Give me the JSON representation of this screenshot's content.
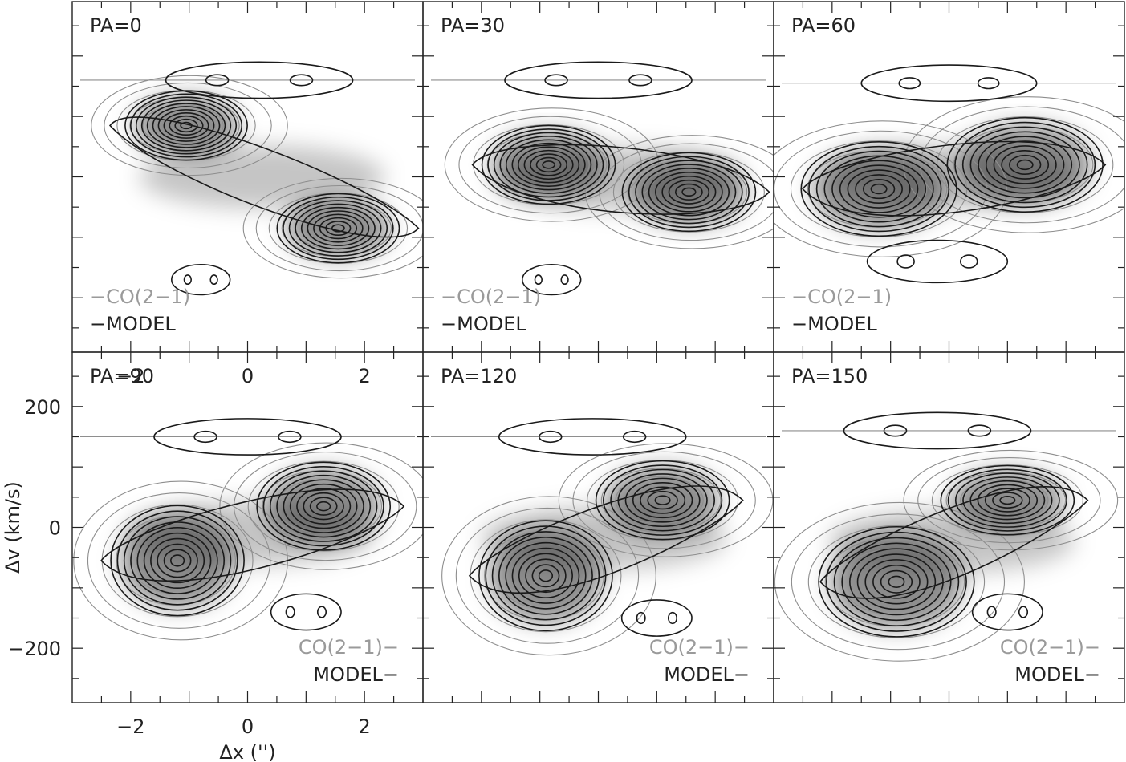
{
  "chart_data": {
    "type": "contour",
    "xlabel": "Δx ('')",
    "ylabel": "Δv (km/s)",
    "xlim": [
      -3,
      3
    ],
    "ylim": [
      -290,
      290
    ],
    "x_ticklabels": [
      "−2",
      "0",
      "2"
    ],
    "x_ticks": [
      -2,
      0,
      2
    ],
    "y_ticklabels": [
      "−200",
      "0",
      "200"
    ],
    "y_ticks": [
      -200,
      0,
      200
    ],
    "legend": {
      "observed": "CO(2−1)",
      "model": "MODEL"
    },
    "panels": [
      {
        "title": "PA=0",
        "model_peaks": [
          {
            "x": -1.05,
            "v": 85,
            "s": [
              0.55,
              22
            ],
            "n": 11
          },
          {
            "x": 1.55,
            "v": -85,
            "s": [
              0.55,
              22
            ],
            "n": 10
          }
        ],
        "model_shell": [
          {
            "x": 0.2,
            "v": 160,
            "s": [
              1.6,
              30
            ]
          },
          {
            "x": -0.8,
            "v": -170,
            "s": [
              0.5,
              25
            ]
          }
        ]
      },
      {
        "title": "PA=30",
        "model_peaks": [
          {
            "x": -0.85,
            "v": 20,
            "s": [
              0.6,
              25
            ],
            "n": 11
          },
          {
            "x": 1.55,
            "v": -25,
            "s": [
              0.6,
              25
            ],
            "n": 10
          }
        ],
        "model_shell": [
          {
            "x": 0.0,
            "v": 160,
            "s": [
              1.6,
              30
            ]
          },
          {
            "x": -0.8,
            "v": -170,
            "s": [
              0.5,
              25
            ]
          }
        ]
      },
      {
        "title": "PA=60",
        "model_peaks": [
          {
            "x": -1.2,
            "v": -20,
            "s": [
              0.7,
              30
            ],
            "n": 10
          },
          {
            "x": 1.3,
            "v": 20,
            "s": [
              0.7,
              30
            ],
            "n": 10
          }
        ],
        "model_shell": [
          {
            "x": 0.0,
            "v": 155,
            "s": [
              1.5,
              30
            ]
          },
          {
            "x": -0.2,
            "v": -140,
            "s": [
              1.2,
              35
            ]
          }
        ]
      },
      {
        "title": "PA=90",
        "model_peaks": [
          {
            "x": -1.2,
            "v": -55,
            "s": [
              0.6,
              35
            ],
            "n": 10
          },
          {
            "x": 1.3,
            "v": 35,
            "s": [
              0.6,
              28
            ],
            "n": 10
          }
        ],
        "model_shell": [
          {
            "x": 0.0,
            "v": 150,
            "s": [
              1.6,
              30
            ]
          },
          {
            "x": 1.0,
            "v": -140,
            "s": [
              0.6,
              30
            ]
          }
        ]
      },
      {
        "title": "PA=120",
        "model_peaks": [
          {
            "x": -0.9,
            "v": -80,
            "s": [
              0.6,
              35
            ],
            "n": 10
          },
          {
            "x": 1.1,
            "v": 45,
            "s": [
              0.6,
              25
            ],
            "n": 9
          }
        ],
        "model_shell": [
          {
            "x": -0.1,
            "v": 150,
            "s": [
              1.6,
              30
            ]
          },
          {
            "x": 1.0,
            "v": -150,
            "s": [
              0.6,
              30
            ]
          }
        ]
      },
      {
        "title": "PA=150",
        "model_peaks": [
          {
            "x": -0.9,
            "v": -90,
            "s": [
              0.7,
              35
            ],
            "n": 10
          },
          {
            "x": 1.0,
            "v": 45,
            "s": [
              0.6,
              22
            ],
            "n": 9
          }
        ],
        "model_shell": [
          {
            "x": -0.2,
            "v": 160,
            "s": [
              1.6,
              30
            ]
          },
          {
            "x": 1.0,
            "v": -140,
            "s": [
              0.6,
              30
            ]
          }
        ]
      }
    ]
  }
}
